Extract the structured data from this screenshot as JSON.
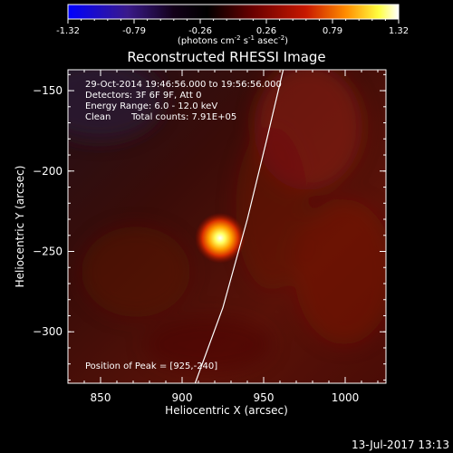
{
  "colorbar": {
    "tick_labels": [
      "-1.32",
      "-0.79",
      "-0.26",
      "0.26",
      "0.79",
      "1.32"
    ],
    "unit_label_parts": [
      "(photons cm",
      "-2",
      " s",
      "-1",
      " asec",
      "-2",
      ")"
    ],
    "colors": [
      "#0000ff",
      "#3a1a8a",
      "#000000",
      "#6a0000",
      "#c81800",
      "#ff8c00",
      "#ffff40",
      "#ffffff"
    ]
  },
  "title": "Reconstructed RHESSI Image",
  "annotations": {
    "time_range": "29-Oct-2014 19:46:56.000 to 19:56:56.000",
    "detectors": "Detectors: 3F 6F 9F, Att 0",
    "energy_range": "Energy Range: 6.0 - 12.0 keV",
    "algorithm": "Clean",
    "total_counts": "Total counts: 7.91E+05",
    "peak_position": "Position of Peak = [925,-240]"
  },
  "x_axis": {
    "label": "Heliocentric X (arcsec)",
    "range": [
      830,
      1025
    ],
    "ticks": [
      850,
      900,
      950,
      1000
    ],
    "tick_labels": [
      "850",
      "900",
      "950",
      "1000"
    ]
  },
  "y_axis": {
    "label": "Heliocentric Y (arcsec)",
    "range": [
      -332,
      -137
    ],
    "ticks": [
      -150,
      -200,
      -250,
      -300
    ],
    "tick_labels": [
      "−150",
      "−200",
      "−250",
      "−300"
    ]
  },
  "source": {
    "peak_x": 925,
    "peak_y": -240
  },
  "limb_curve": [
    [
      908,
      -332
    ],
    [
      925,
      -285
    ],
    [
      940,
      -230
    ],
    [
      952,
      -180
    ],
    [
      962,
      -137
    ]
  ],
  "footer_timestamp": "13-Jul-2017 13:13"
}
